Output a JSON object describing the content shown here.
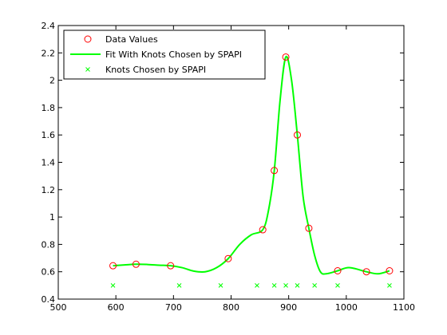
{
  "chart_data": {
    "type": "line",
    "title": "",
    "xlabel": "",
    "ylabel": "",
    "xlim": [
      500,
      1100
    ],
    "ylim": [
      0.4,
      2.4
    ],
    "xticks": [
      500,
      600,
      700,
      800,
      900,
      1000,
      1100
    ],
    "yticks": [
      0.4,
      0.6,
      0.8,
      1,
      1.2,
      1.4,
      1.6,
      1.8,
      2,
      2.2,
      2.4
    ],
    "grid": false,
    "legend_position": "top-left",
    "series": [
      {
        "name": "Data Values",
        "kind": "markers",
        "marker": "circle",
        "color": "#ff0000",
        "x": [
          595,
          635,
          695,
          795,
          855,
          875,
          895,
          915,
          935,
          985,
          1035,
          1075
        ],
        "y": [
          0.644,
          0.655,
          0.644,
          0.696,
          0.907,
          1.34,
          2.17,
          1.6,
          0.918,
          0.607,
          0.6,
          0.607
        ]
      },
      {
        "name": "Fit With Knots Chosen by SPAPI",
        "kind": "line",
        "color": "#00ff00",
        "x": [
          595,
          615,
          635,
          655,
          675,
          695,
          715,
          735,
          755,
          775,
          795,
          815,
          835,
          855,
          865,
          875,
          885,
          895,
          905,
          915,
          925,
          935,
          945,
          955,
          965,
          985,
          1005,
          1035,
          1055,
          1075
        ],
        "y": [
          0.644,
          0.65,
          0.655,
          0.653,
          0.648,
          0.644,
          0.63,
          0.605,
          0.6,
          0.63,
          0.696,
          0.8,
          0.87,
          0.907,
          1.05,
          1.34,
          1.85,
          2.17,
          2.0,
          1.6,
          1.15,
          0.918,
          0.72,
          0.6,
          0.585,
          0.607,
          0.63,
          0.6,
          0.585,
          0.607
        ]
      },
      {
        "name": "Knots Chosen by SPAPI",
        "kind": "markers",
        "marker": "x",
        "color": "#00ff00",
        "x": [
          595,
          710,
          782,
          845,
          875,
          895,
          915,
          945,
          985,
          1075
        ],
        "y": [
          0.5,
          0.5,
          0.5,
          0.5,
          0.5,
          0.5,
          0.5,
          0.5,
          0.5,
          0.5
        ]
      }
    ]
  }
}
